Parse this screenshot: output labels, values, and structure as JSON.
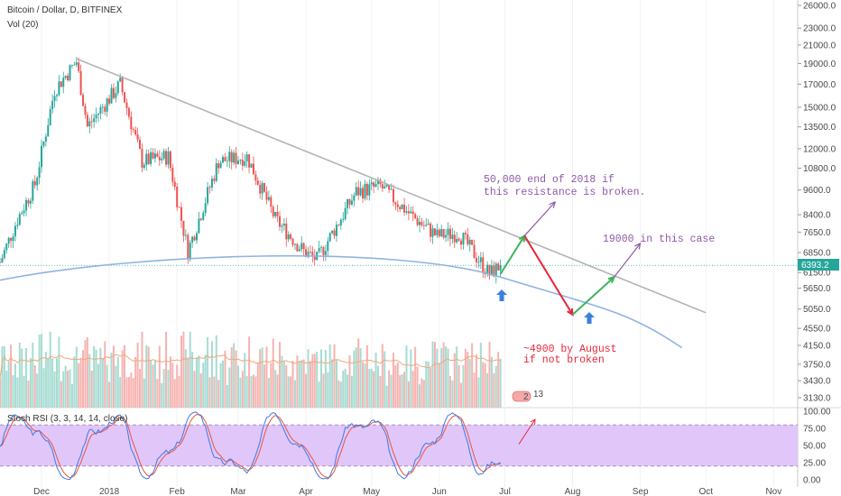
{
  "header": {
    "symbol": "Bitcoin / Dollar, D, BITFINEX",
    "volume": "Vol (20)",
    "oscillator": "Stoch RSI (3, 3, 14, 14, close)"
  },
  "price_tag": "6393.2",
  "volume_badge": "2",
  "volume_badge_small": "13",
  "annotations": {
    "breakout_line1": "50,000 end of 2018 if",
    "breakout_line2": "this resistance is broken.",
    "after_dip": "19000 in this case",
    "breakdown_line1": "~4900 by August",
    "breakdown_line2": "if not broken"
  },
  "colors": {
    "up": "#26a69a",
    "down": "#ef5350",
    "resistance": "#b4b4b4",
    "support_arc": "#8fb3e3",
    "green_arrow": "#3cb55a",
    "red_arrow": "#e8263a",
    "purple_arrow": "#8e59a8",
    "blue_arrow": "#3a7fe0",
    "stoch_band": "#e1c6fa"
  },
  "chart_data": [
    {
      "type": "candlestick",
      "symbol": "BTCUSD",
      "scale": "log",
      "y_ticks": [
        26000,
        23000,
        21000,
        19000,
        17000,
        15000,
        13500,
        12000,
        10800,
        9600,
        8400,
        7650,
        6850,
        6150,
        5650,
        5050,
        4550,
        4150,
        3750,
        3430,
        3130
      ],
      "x_ticks": [
        "Dec",
        "2018",
        "Feb",
        "Mar",
        "Apr",
        "May",
        "Jun",
        "Jul",
        "Aug",
        "Sep",
        "Oct",
        "Nov"
      ],
      "last_price": 6393.2,
      "price_path": [
        {
          "date": "2017-11-12",
          "close": 6500
        },
        {
          "date": "2017-11-20",
          "close": 8200
        },
        {
          "date": "2017-11-28",
          "close": 9900
        },
        {
          "date": "2017-12-07",
          "close": 16500
        },
        {
          "date": "2017-12-17",
          "close": 19200
        },
        {
          "date": "2017-12-22",
          "close": 13500
        },
        {
          "date": "2018-01-06",
          "close": 17000
        },
        {
          "date": "2018-01-16",
          "close": 11200
        },
        {
          "date": "2018-01-28",
          "close": 11500
        },
        {
          "date": "2018-02-06",
          "close": 6900
        },
        {
          "date": "2018-02-20",
          "close": 11200
        },
        {
          "date": "2018-03-05",
          "close": 11500
        },
        {
          "date": "2018-03-18",
          "close": 8200
        },
        {
          "date": "2018-03-31",
          "close": 6900
        },
        {
          "date": "2018-04-06",
          "close": 6600
        },
        {
          "date": "2018-04-24",
          "close": 9500
        },
        {
          "date": "2018-05-05",
          "close": 9800
        },
        {
          "date": "2018-05-20",
          "close": 8300
        },
        {
          "date": "2018-05-31",
          "close": 7500
        },
        {
          "date": "2018-06-10",
          "close": 7600
        },
        {
          "date": "2018-06-24",
          "close": 6100
        },
        {
          "date": "2018-06-29",
          "close": 6393.2
        }
      ],
      "trendlines": [
        {
          "name": "resistance",
          "points": [
            {
              "date": "2017-12-17",
              "price": 19500
            },
            {
              "date": "2018-10-01",
              "price": 4950
            }
          ]
        },
        {
          "name": "support-arc",
          "points": [
            {
              "date": "2017-11-12",
              "price": 5900
            },
            {
              "date": "2018-03-01",
              "price": 6900
            },
            {
              "date": "2018-06-29",
              "price": 6000
            },
            {
              "date": "2018-09-20",
              "price": 4100
            }
          ]
        }
      ],
      "projections": [
        {
          "color": "green",
          "from": {
            "date": "2018-06-29",
            "price": 6100
          },
          "to": {
            "date": "2018-07-10",
            "price": 7500
          }
        },
        {
          "color": "purple",
          "from": {
            "date": "2018-07-10",
            "price": 7500
          },
          "to": {
            "date": "2018-07-24",
            "price": 9000
          }
        },
        {
          "color": "red",
          "from": {
            "date": "2018-07-10",
            "price": 7500
          },
          "to": {
            "date": "2018-08-01",
            "price": 4900
          }
        },
        {
          "color": "green",
          "from": {
            "date": "2018-08-01",
            "price": 4900
          },
          "to": {
            "date": "2018-08-20",
            "price": 6000
          }
        },
        {
          "color": "purple",
          "from": {
            "date": "2018-08-20",
            "price": 6000
          },
          "to": {
            "date": "2018-09-01",
            "price": 7200
          }
        }
      ]
    },
    {
      "type": "line",
      "name": "Stoch RSI",
      "y_ticks": [
        100,
        75,
        50,
        25,
        0
      ],
      "ylim": [
        0,
        100
      ],
      "band": [
        20,
        80
      ]
    }
  ]
}
